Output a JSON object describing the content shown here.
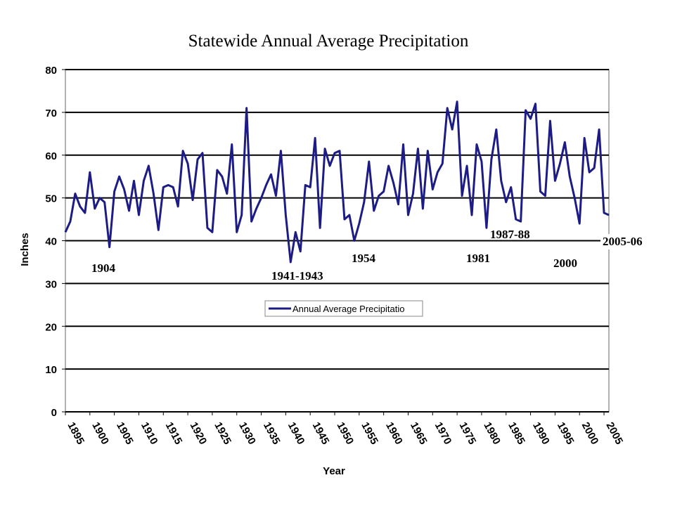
{
  "chart_data": {
    "type": "line",
    "title": "Statewide Annual Average Precipitation",
    "xlabel": "Year",
    "ylabel": "Inches",
    "x": [
      1895,
      1896,
      1897,
      1898,
      1899,
      1900,
      1901,
      1902,
      1903,
      1904,
      1905,
      1906,
      1907,
      1908,
      1909,
      1910,
      1911,
      1912,
      1913,
      1914,
      1915,
      1916,
      1917,
      1918,
      1919,
      1920,
      1921,
      1922,
      1923,
      1924,
      1925,
      1926,
      1927,
      1928,
      1929,
      1930,
      1931,
      1932,
      1933,
      1934,
      1935,
      1936,
      1937,
      1938,
      1939,
      1940,
      1941,
      1942,
      1943,
      1944,
      1945,
      1946,
      1947,
      1948,
      1949,
      1950,
      1951,
      1952,
      1953,
      1954,
      1955,
      1956,
      1957,
      1958,
      1959,
      1960,
      1961,
      1962,
      1963,
      1964,
      1965,
      1966,
      1967,
      1968,
      1969,
      1970,
      1971,
      1972,
      1973,
      1974,
      1975,
      1976,
      1977,
      1978,
      1979,
      1980,
      1981,
      1982,
      1983,
      1984,
      1985,
      1986,
      1987,
      1988,
      1989,
      1990,
      1991,
      1992,
      1993,
      1994,
      1995,
      1996,
      1997,
      1998,
      1999,
      2000,
      2001,
      2002,
      2003,
      2004,
      2005,
      2006
    ],
    "series": [
      {
        "name": "Annual Average Precipitatio",
        "color": "#1c1c84",
        "values": [
          42,
          44.5,
          51,
          48,
          46.5,
          56,
          47.5,
          50,
          49,
          38.5,
          51.5,
          55,
          52,
          47,
          54,
          46,
          54,
          57.5,
          51,
          42.5,
          52.5,
          53,
          52.5,
          48,
          61,
          58,
          49.5,
          59,
          60.5,
          43,
          42,
          56.5,
          55,
          51,
          62.5,
          42,
          46,
          71,
          44.5,
          47.5,
          50,
          53,
          55.5,
          50.5,
          61,
          46,
          35,
          42,
          37.5,
          53,
          52.5,
          64,
          43,
          61.5,
          57.5,
          60.5,
          61,
          45,
          46,
          40,
          44,
          49,
          58.5,
          47,
          50.5,
          51.5,
          57.5,
          53.5,
          48.5,
          62.5,
          46,
          51,
          61.5,
          47.5,
          61,
          52,
          56,
          58,
          71,
          66,
          72.5,
          50.5,
          57.5,
          46,
          62.5,
          58.5,
          43,
          59,
          66,
          54,
          49,
          52.5,
          45,
          44.5,
          70.5,
          68.5,
          72,
          51.5,
          50.5,
          68,
          54,
          58,
          63,
          55,
          50,
          44,
          64,
          56,
          57,
          66,
          46.5,
          46
        ]
      }
    ],
    "xlim": [
      1895,
      2006
    ],
    "xticks": [
      1895,
      1900,
      1905,
      1910,
      1915,
      1920,
      1925,
      1930,
      1935,
      1940,
      1945,
      1950,
      1955,
      1960,
      1965,
      1970,
      1975,
      1980,
      1985,
      1990,
      1995,
      2000,
      2005
    ],
    "ylim": [
      0,
      80
    ],
    "yticks": [
      0,
      10,
      20,
      30,
      40,
      50,
      60,
      70,
      80
    ],
    "grid": true,
    "annotations": [
      "1904",
      "1941-1943",
      "1954",
      "1981",
      "1987-88",
      "2000",
      "2005-06"
    ]
  }
}
